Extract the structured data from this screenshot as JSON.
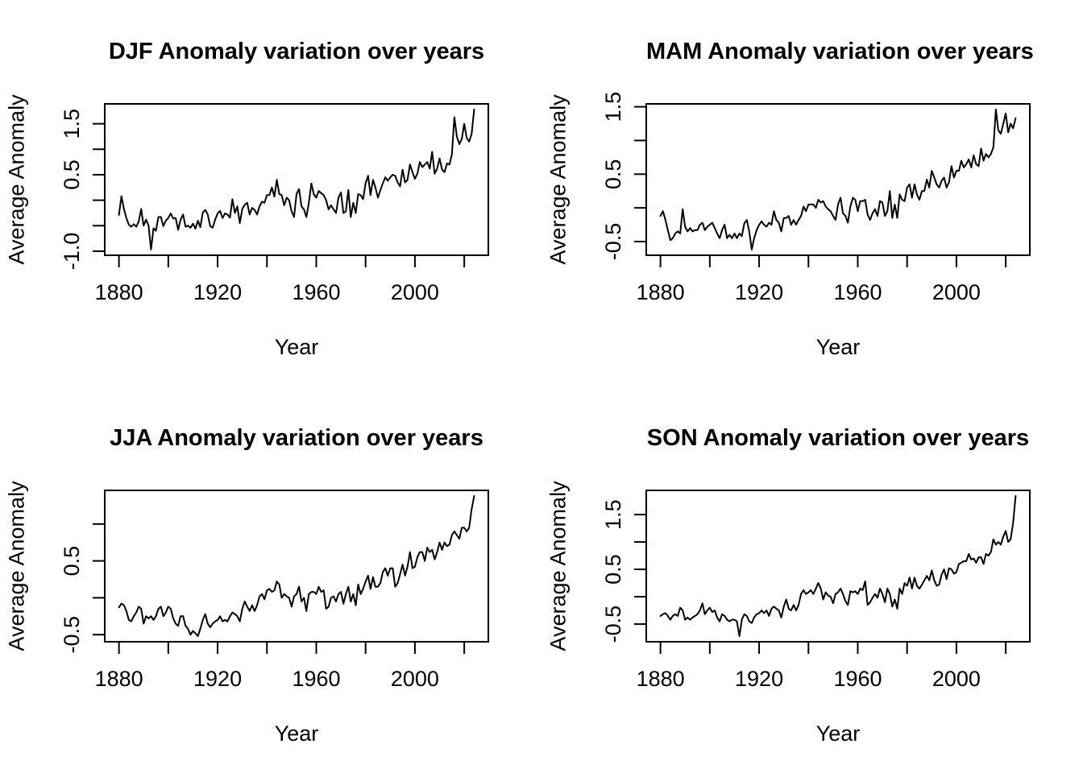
{
  "figure": {
    "background": "#ffffff",
    "foreground": "#000000",
    "line_color": "#000000"
  },
  "chart_data": [
    {
      "id": "djf",
      "type": "line",
      "title": "DJF Anomaly variation over years",
      "xlabel": "Year",
      "ylabel": "Average Anomaly",
      "x_range": [
        1880,
        2024
      ],
      "x_ticks": [
        1880,
        1900,
        1920,
        1940,
        1960,
        1980,
        2000,
        2020
      ],
      "x_tick_labels": [
        "1880",
        "",
        "1920",
        "",
        "1960",
        "",
        "2000",
        ""
      ],
      "y_ticks": [
        -1.0,
        -0.5,
        0.0,
        0.5,
        1.0,
        1.5
      ],
      "y_tick_labels": [
        "-1.0",
        "",
        "",
        "0.5",
        "",
        "1.5"
      ],
      "values": [
        -0.29,
        0.08,
        -0.17,
        -0.35,
        -0.48,
        -0.52,
        -0.47,
        -0.52,
        -0.42,
        -0.17,
        -0.5,
        -0.38,
        -0.5,
        -0.97,
        -0.55,
        -0.6,
        -0.33,
        -0.33,
        -0.51,
        -0.4,
        -0.35,
        -0.26,
        -0.36,
        -0.35,
        -0.58,
        -0.38,
        -0.28,
        -0.52,
        -0.5,
        -0.54,
        -0.46,
        -0.56,
        -0.4,
        -0.53,
        -0.24,
        -0.19,
        -0.28,
        -0.51,
        -0.54,
        -0.38,
        -0.26,
        -0.21,
        -0.35,
        -0.26,
        -0.28,
        -0.34,
        0.02,
        -0.25,
        -0.12,
        -0.45,
        -0.17,
        -0.09,
        -0.05,
        -0.28,
        -0.15,
        -0.19,
        -0.28,
        -0.12,
        -0.03,
        -0.05,
        0.1,
        0.1,
        0.25,
        0.07,
        0.4,
        0.12,
        0.1,
        -0.1,
        0.05,
        0.0,
        -0.22,
        -0.33,
        0.12,
        0.22,
        -0.12,
        -0.18,
        -0.33,
        -0.05,
        0.33,
        0.12,
        0.05,
        0.18,
        0.14,
        0.1,
        0.0,
        -0.18,
        -0.1,
        -0.18,
        -0.25,
        0.05,
        0.15,
        -0.25,
        -0.22,
        0.2,
        -0.33,
        -0.05,
        -0.25,
        0.12,
        0.1,
        0.02,
        0.33,
        0.48,
        0.1,
        0.4,
        0.25,
        0.05,
        0.2,
        0.33,
        0.45,
        0.38,
        0.45,
        0.5,
        0.48,
        0.35,
        0.27,
        0.6,
        0.35,
        0.4,
        0.7,
        0.55,
        0.42,
        0.52,
        0.75,
        0.65,
        0.7,
        0.75,
        0.62,
        0.95,
        0.52,
        0.62,
        0.82,
        0.6,
        0.55,
        0.72,
        0.7,
        0.9,
        1.63,
        1.25,
        1.1,
        1.2,
        1.5,
        1.22,
        1.15,
        1.3,
        1.78
      ]
    },
    {
      "id": "mam",
      "type": "line",
      "title": "MAM Anomaly variation over years",
      "xlabel": "Year",
      "ylabel": "Average Anomaly",
      "x_range": [
        1880,
        2024
      ],
      "x_ticks": [
        1880,
        1900,
        1920,
        1940,
        1960,
        1980,
        2000,
        2020
      ],
      "x_tick_labels": [
        "1880",
        "",
        "1920",
        "",
        "1960",
        "",
        "2000",
        ""
      ],
      "y_ticks": [
        -0.5,
        0.0,
        0.5,
        1.0,
        1.5
      ],
      "y_tick_labels": [
        "-0.5",
        "",
        "0.5",
        "",
        "1.5"
      ],
      "values": [
        -0.12,
        -0.05,
        -0.18,
        -0.33,
        -0.48,
        -0.45,
        -0.38,
        -0.35,
        -0.38,
        -0.02,
        -0.28,
        -0.35,
        -0.3,
        -0.35,
        -0.33,
        -0.33,
        -0.25,
        -0.22,
        -0.33,
        -0.28,
        -0.25,
        -0.22,
        -0.3,
        -0.38,
        -0.45,
        -0.33,
        -0.25,
        -0.45,
        -0.4,
        -0.45,
        -0.38,
        -0.45,
        -0.38,
        -0.42,
        -0.23,
        -0.18,
        -0.35,
        -0.62,
        -0.45,
        -0.33,
        -0.25,
        -0.2,
        -0.25,
        -0.28,
        -0.22,
        -0.25,
        -0.05,
        -0.18,
        -0.22,
        -0.35,
        -0.15,
        -0.15,
        -0.12,
        -0.25,
        -0.18,
        -0.25,
        -0.18,
        -0.12,
        0.02,
        -0.05,
        0.05,
        0.05,
        0.05,
        0.0,
        0.12,
        0.08,
        0.1,
        0.02,
        -0.02,
        -0.05,
        -0.12,
        -0.18,
        0.05,
        0.15,
        -0.08,
        -0.12,
        -0.22,
        0.02,
        0.15,
        0.12,
        -0.05,
        0.1,
        0.1,
        0.12,
        -0.1,
        -0.18,
        -0.08,
        -0.02,
        -0.12,
        0.1,
        0.08,
        -0.12,
        -0.05,
        0.25,
        -0.15,
        0.05,
        -0.15,
        0.2,
        0.12,
        0.1,
        0.3,
        0.35,
        0.15,
        0.35,
        0.2,
        0.12,
        0.25,
        0.25,
        0.42,
        0.3,
        0.55,
        0.45,
        0.35,
        0.3,
        0.4,
        0.45,
        0.3,
        0.38,
        0.62,
        0.45,
        0.55,
        0.55,
        0.7,
        0.6,
        0.65,
        0.72,
        0.6,
        0.78,
        0.65,
        0.62,
        0.88,
        0.7,
        0.8,
        0.75,
        0.8,
        0.9,
        1.46,
        1.15,
        1.1,
        1.25,
        1.4,
        1.12,
        1.25,
        1.18,
        1.33
      ]
    },
    {
      "id": "jja",
      "type": "line",
      "title": "JJA Anomaly variation over years",
      "xlabel": "Year",
      "ylabel": "Average Anomaly",
      "x_range": [
        1880,
        2024
      ],
      "x_ticks": [
        1880,
        1900,
        1920,
        1940,
        1960,
        1980,
        2000,
        2020
      ],
      "x_tick_labels": [
        "1880",
        "",
        "1920",
        "",
        "1960",
        "",
        "2000",
        ""
      ],
      "y_ticks": [
        -0.5,
        0.0,
        0.5,
        1.0
      ],
      "y_tick_labels": [
        "-0.5",
        "",
        "0.5",
        ""
      ],
      "values": [
        -0.13,
        -0.08,
        -0.1,
        -0.18,
        -0.3,
        -0.32,
        -0.25,
        -0.2,
        -0.12,
        -0.15,
        -0.35,
        -0.25,
        -0.28,
        -0.25,
        -0.3,
        -0.25,
        -0.15,
        -0.12,
        -0.25,
        -0.2,
        -0.12,
        -0.15,
        -0.28,
        -0.35,
        -0.38,
        -0.25,
        -0.25,
        -0.38,
        -0.42,
        -0.5,
        -0.45,
        -0.48,
        -0.52,
        -0.42,
        -0.3,
        -0.22,
        -0.35,
        -0.4,
        -0.35,
        -0.32,
        -0.3,
        -0.25,
        -0.32,
        -0.3,
        -0.32,
        -0.25,
        -0.2,
        -0.22,
        -0.25,
        -0.32,
        -0.15,
        -0.05,
        -0.12,
        -0.18,
        -0.1,
        -0.18,
        -0.1,
        0.02,
        0.05,
        -0.02,
        0.1,
        0.12,
        0.08,
        0.1,
        0.22,
        0.18,
        0.0,
        0.05,
        0.02,
        0.0,
        -0.12,
        0.02,
        0.05,
        0.15,
        -0.05,
        0.0,
        -0.18,
        0.05,
        0.08,
        0.08,
        0.05,
        0.15,
        0.08,
        0.1,
        -0.15,
        -0.12,
        0.0,
        0.02,
        -0.05,
        0.05,
        0.08,
        -0.08,
        0.05,
        0.15,
        -0.05,
        0.05,
        -0.1,
        0.18,
        0.05,
        0.12,
        0.22,
        0.3,
        0.12,
        0.28,
        0.15,
        0.15,
        0.2,
        0.35,
        0.4,
        0.3,
        0.4,
        0.4,
        0.15,
        0.2,
        0.32,
        0.45,
        0.3,
        0.42,
        0.62,
        0.4,
        0.42,
        0.55,
        0.62,
        0.62,
        0.5,
        0.68,
        0.62,
        0.65,
        0.52,
        0.62,
        0.75,
        0.65,
        0.75,
        0.7,
        0.72,
        0.85,
        0.9,
        0.85,
        0.8,
        0.95,
        0.95,
        0.9,
        0.95,
        1.2,
        1.38
      ]
    },
    {
      "id": "son",
      "type": "line",
      "title": "SON Anomaly variation over years",
      "xlabel": "Year",
      "ylabel": "Average Anomaly",
      "x_range": [
        1880,
        2024
      ],
      "x_ticks": [
        1880,
        1900,
        1920,
        1940,
        1960,
        1980,
        2000,
        2020
      ],
      "x_tick_labels": [
        "1880",
        "",
        "1920",
        "",
        "1960",
        "",
        "2000",
        ""
      ],
      "y_ticks": [
        -0.5,
        0.0,
        0.5,
        1.0,
        1.5
      ],
      "y_tick_labels": [
        "-0.5",
        "",
        "0.5",
        "",
        "1.5"
      ],
      "values": [
        -0.35,
        -0.32,
        -0.3,
        -0.35,
        -0.42,
        -0.35,
        -0.32,
        -0.35,
        -0.2,
        -0.25,
        -0.42,
        -0.38,
        -0.42,
        -0.38,
        -0.35,
        -0.32,
        -0.25,
        -0.12,
        -0.32,
        -0.25,
        -0.2,
        -0.28,
        -0.25,
        -0.38,
        -0.45,
        -0.32,
        -0.35,
        -0.42,
        -0.45,
        -0.42,
        -0.42,
        -0.45,
        -0.72,
        -0.42,
        -0.32,
        -0.35,
        -0.45,
        -0.48,
        -0.38,
        -0.32,
        -0.3,
        -0.25,
        -0.3,
        -0.25,
        -0.35,
        -0.22,
        -0.18,
        -0.22,
        -0.25,
        -0.38,
        -0.18,
        -0.05,
        -0.22,
        -0.25,
        -0.15,
        -0.25,
        -0.15,
        0.05,
        0.12,
        0.05,
        0.08,
        0.12,
        0.05,
        0.15,
        0.25,
        0.15,
        -0.05,
        0.08,
        0.02,
        0.0,
        -0.12,
        0.05,
        0.08,
        0.15,
        0.05,
        -0.08,
        -0.15,
        0.1,
        0.08,
        0.1,
        0.05,
        0.15,
        0.12,
        0.28,
        -0.15,
        -0.1,
        -0.02,
        0.05,
        -0.02,
        0.15,
        0.05,
        -0.1,
        0.15,
        0.05,
        -0.18,
        -0.05,
        -0.22,
        0.15,
        0.05,
        0.25,
        0.2,
        0.35,
        0.15,
        0.35,
        0.2,
        0.15,
        0.22,
        0.3,
        0.38,
        0.3,
        0.48,
        0.3,
        0.2,
        0.22,
        0.4,
        0.5,
        0.32,
        0.52,
        0.5,
        0.42,
        0.45,
        0.6,
        0.62,
        0.65,
        0.65,
        0.78,
        0.68,
        0.7,
        0.62,
        0.72,
        0.72,
        0.6,
        0.78,
        0.75,
        0.82,
        1.05,
        0.95,
        1.0,
        0.95,
        1.1,
        1.2,
        1.0,
        1.05,
        1.35,
        1.84
      ]
    }
  ]
}
